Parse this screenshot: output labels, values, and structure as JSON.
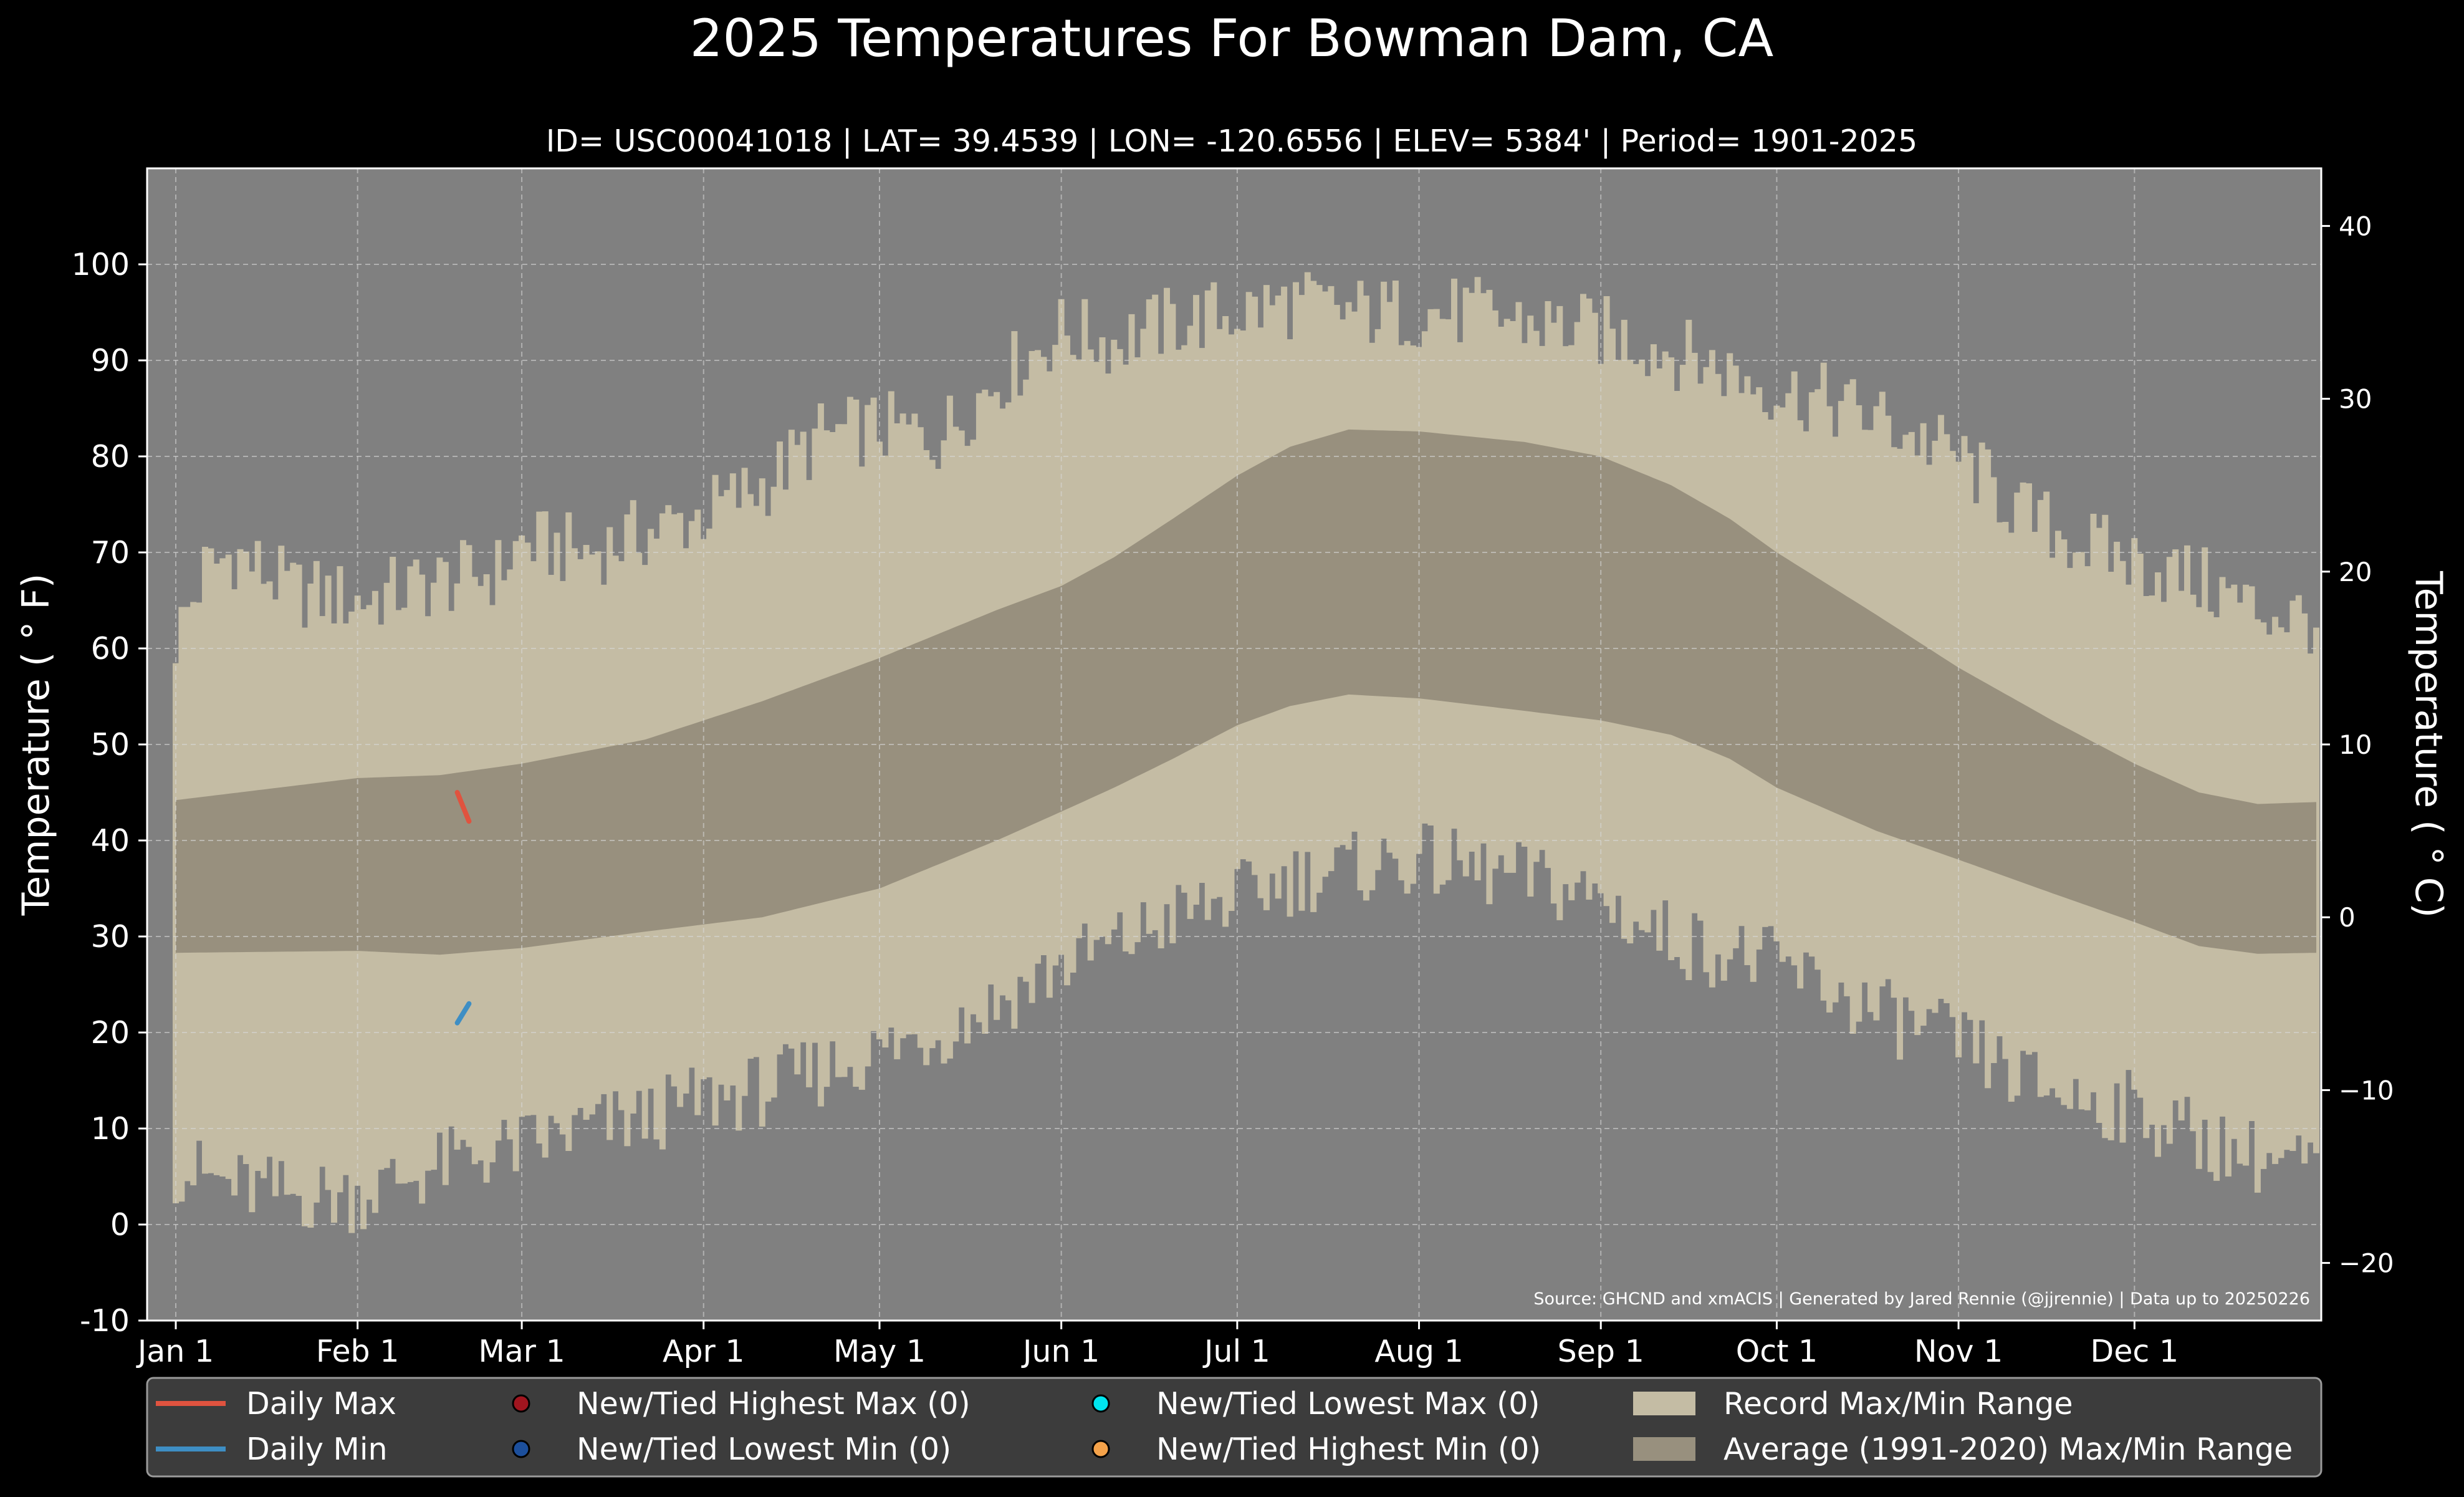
{
  "chart_data": {
    "type": "area",
    "title": "2025 Temperatures For Bowman Dam, CA",
    "subtitle": "ID= USC00041018 | LAT= 39.4539 | LON= -120.6556 | ELEV= 5384' | Period= 1901-2025",
    "ylabel": "Temperature ( $^\\circ$F)",
    "ylabel_display": "Temperature ( ° F)",
    "ylabel_right": "Temperature ( ° C)",
    "ylim": [
      -10,
      110
    ],
    "yticks": [
      -10,
      0,
      10,
      20,
      30,
      40,
      50,
      60,
      70,
      80,
      90,
      100
    ],
    "yticks_right": [
      -20,
      -10,
      0,
      10,
      20,
      30,
      40
    ],
    "xlim": [
      0,
      366
    ],
    "xticks": [
      {
        "label": "Jan 1",
        "day": 0
      },
      {
        "label": "Feb 1",
        "day": 31
      },
      {
        "label": "Mar 1",
        "day": 59
      },
      {
        "label": "Apr 1",
        "day": 90
      },
      {
        "label": "May 1",
        "day": 120
      },
      {
        "label": "Jun 1",
        "day": 151
      },
      {
        "label": "Jul 1",
        "day": 181
      },
      {
        "label": "Aug 1",
        "day": 212
      },
      {
        "label": "Sep 1",
        "day": 243
      },
      {
        "label": "Oct 1",
        "day": 273
      },
      {
        "label": "Nov 1",
        "day": 304
      },
      {
        "label": "Dec 1",
        "day": 334
      }
    ],
    "grid": true,
    "source_note": "Source: GHCND and xmACIS | Generated by Jared Rennie (@jjrennie) | Data up to 20250226",
    "record_max_anchor": {
      "day": [
        0,
        5,
        10,
        20,
        31,
        45,
        55,
        59,
        70,
        80,
        90,
        100,
        110,
        120,
        130,
        140,
        151,
        160,
        170,
        181,
        190,
        200,
        212,
        220,
        230,
        243,
        250,
        260,
        273,
        280,
        290,
        304,
        315,
        325,
        334,
        345,
        355,
        365
      ],
      "value": [
        61,
        68,
        70,
        66,
        65,
        67,
        68,
        71,
        70,
        72,
        74,
        77,
        82,
        83,
        82,
        88,
        93,
        92,
        94,
        95,
        96,
        95,
        95,
        95,
        94,
        93,
        92,
        90,
        87,
        86,
        84,
        80,
        74,
        71,
        69,
        67,
        64,
        63
      ]
    },
    "record_min_anchor": {
      "day": [
        0,
        10,
        20,
        31,
        40,
        50,
        59,
        70,
        80,
        90,
        100,
        110,
        120,
        130,
        140,
        151,
        160,
        170,
        181,
        190,
        200,
        212,
        220,
        230,
        243,
        250,
        260,
        273,
        280,
        290,
        304,
        315,
        325,
        334,
        345,
        355,
        365
      ],
      "value": [
        6,
        4,
        3,
        3,
        5,
        7,
        8,
        10,
        11,
        13,
        14,
        16,
        18,
        20,
        23,
        27,
        29,
        32,
        34,
        36,
        37,
        38,
        37,
        36,
        34,
        31,
        29,
        27,
        25,
        22,
        19,
        15,
        13,
        12,
        9,
        7,
        6
      ]
    },
    "avg_max_anchor": {
      "day": [
        0,
        31,
        45,
        59,
        80,
        100,
        120,
        140,
        151,
        160,
        170,
        181,
        190,
        200,
        212,
        230,
        243,
        255,
        265,
        273,
        290,
        304,
        320,
        334,
        345,
        355,
        365
      ],
      "value": [
        44.2,
        46.5,
        46.8,
        48.0,
        50.5,
        54.5,
        59.0,
        64.0,
        66.5,
        69.5,
        73.5,
        78.0,
        81.0,
        82.8,
        82.6,
        81.5,
        80.0,
        77.0,
        73.5,
        70.0,
        63.5,
        58.0,
        52.5,
        48.0,
        45.0,
        43.8,
        44.0
      ]
    },
    "avg_min_anchor": {
      "day": [
        0,
        31,
        45,
        59,
        80,
        100,
        120,
        140,
        151,
        160,
        170,
        181,
        190,
        200,
        212,
        230,
        243,
        255,
        265,
        273,
        290,
        304,
        320,
        334,
        345,
        355,
        365
      ],
      "value": [
        28.3,
        28.5,
        28.1,
        28.8,
        30.5,
        32.0,
        35.0,
        40.0,
        43.0,
        45.5,
        48.5,
        52.0,
        54.0,
        55.2,
        54.8,
        53.5,
        52.5,
        51.0,
        48.5,
        45.5,
        41.0,
        38.0,
        34.5,
        31.5,
        29.0,
        28.2,
        28.3
      ]
    },
    "series": [
      {
        "name": "Daily Max",
        "color": "#e0533f",
        "x": [
          48,
          49,
          50
        ],
        "values": [
          45,
          43.5,
          42
        ]
      },
      {
        "name": "Daily Min",
        "color": "#3e8ec4",
        "x": [
          48,
          49,
          50
        ],
        "values": [
          21,
          22,
          23
        ]
      }
    ]
  },
  "legend": {
    "items": [
      {
        "label": "Daily Max",
        "kind": "line",
        "color": "#e0533f"
      },
      {
        "label": "Daily Min",
        "kind": "line",
        "color": "#3e8ec4"
      },
      {
        "label": "New/Tied Highest Max (0)",
        "kind": "dot",
        "color": "#a0151f"
      },
      {
        "label": "New/Tied Lowest Min (0)",
        "kind": "dot",
        "color": "#1c4f9c"
      },
      {
        "label": "New/Tied Lowest Max (0)",
        "kind": "dot",
        "color": "#00e5ee"
      },
      {
        "label": "New/Tied Highest Min (0)",
        "kind": "dot",
        "color": "#f4a24a"
      },
      {
        "label": "Record Max/Min Range",
        "kind": "patch",
        "color": "#c4bca4"
      },
      {
        "label": "Average (1991-2020) Max/Min Range",
        "kind": "patch",
        "color": "#98907e"
      }
    ]
  },
  "colors": {
    "figure_bg": "#000000",
    "plot_bg": "#808080",
    "record_fill": "#c4bca4",
    "average_fill": "#98907e",
    "legend_bg": "#3c3c3c"
  }
}
